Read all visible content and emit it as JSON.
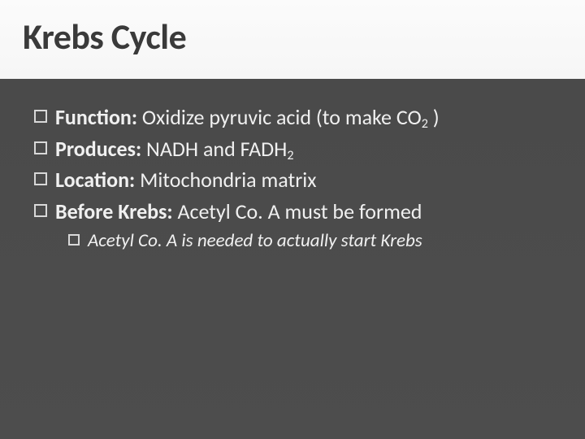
{
  "slide": {
    "title": "Krebs Cycle",
    "title_fontsize": 44,
    "title_color": "#3a3a3a",
    "body_fontsize": 26,
    "body_color": "#f0f0f0",
    "sub_fontsize": 23,
    "background_top": "#fafafa",
    "background_bottom": "#4c4c4c",
    "bullets": [
      {
        "label": "Function:",
        "text": " Oxidize pyruvic acid (to make CO",
        "sub": "2",
        "tail": " )"
      },
      {
        "label": "Produces:",
        "text": " NADH and FADH",
        "sub": "2",
        "tail": ""
      },
      {
        "label": "Location:",
        "text": "  Mitochondria matrix",
        "sub": "",
        "tail": ""
      },
      {
        "label": "Before Krebs:",
        "text": " Acetyl Co. A must be formed",
        "sub": "",
        "tail": ""
      }
    ],
    "sub_bullet": {
      "text": "Acetyl Co. A is needed to actually start Krebs"
    }
  }
}
